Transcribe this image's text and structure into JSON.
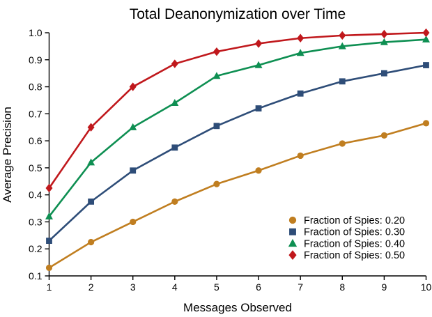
{
  "chart_data": {
    "type": "line",
    "title": "Total Deanonymization over Time",
    "xlabel": "Messages Observed",
    "ylabel": "Average Precision",
    "xlim": [
      1,
      10
    ],
    "ylim": [
      0.1,
      1.0
    ],
    "x": [
      1,
      2,
      3,
      4,
      5,
      6,
      7,
      8,
      9,
      10
    ],
    "x_ticks": [
      "1",
      "2",
      "3",
      "4",
      "5",
      "6",
      "7",
      "8",
      "9",
      "10"
    ],
    "y_ticks": [
      "0.1",
      "0.2",
      "0.3",
      "0.4",
      "0.5",
      "0.6",
      "0.7",
      "0.8",
      "0.9",
      "1.0"
    ],
    "grid": false,
    "legend_position": "lower right",
    "background_color": "#ffffff",
    "axis_color": "#000000",
    "series": [
      {
        "name": "Fraction of Spies: 0.20",
        "marker": "circle",
        "color": "#C07E20",
        "values": [
          0.13,
          0.225,
          0.3,
          0.375,
          0.44,
          0.49,
          0.545,
          0.59,
          0.62,
          0.665
        ]
      },
      {
        "name": "Fraction of Spies: 0.30",
        "marker": "square",
        "color": "#2E4D78",
        "values": [
          0.23,
          0.375,
          0.49,
          0.575,
          0.655,
          0.72,
          0.775,
          0.82,
          0.85,
          0.88
        ]
      },
      {
        "name": "Fraction of Spies: 0.40",
        "marker": "triangle",
        "color": "#0E8F52",
        "values": [
          0.32,
          0.52,
          0.65,
          0.74,
          0.84,
          0.88,
          0.925,
          0.95,
          0.965,
          0.975
        ]
      },
      {
        "name": "Fraction of Spies: 0.50",
        "marker": "diamond",
        "color": "#C0181C",
        "values": [
          0.425,
          0.65,
          0.8,
          0.885,
          0.93,
          0.96,
          0.98,
          0.99,
          0.995,
          1.0
        ]
      }
    ]
  }
}
